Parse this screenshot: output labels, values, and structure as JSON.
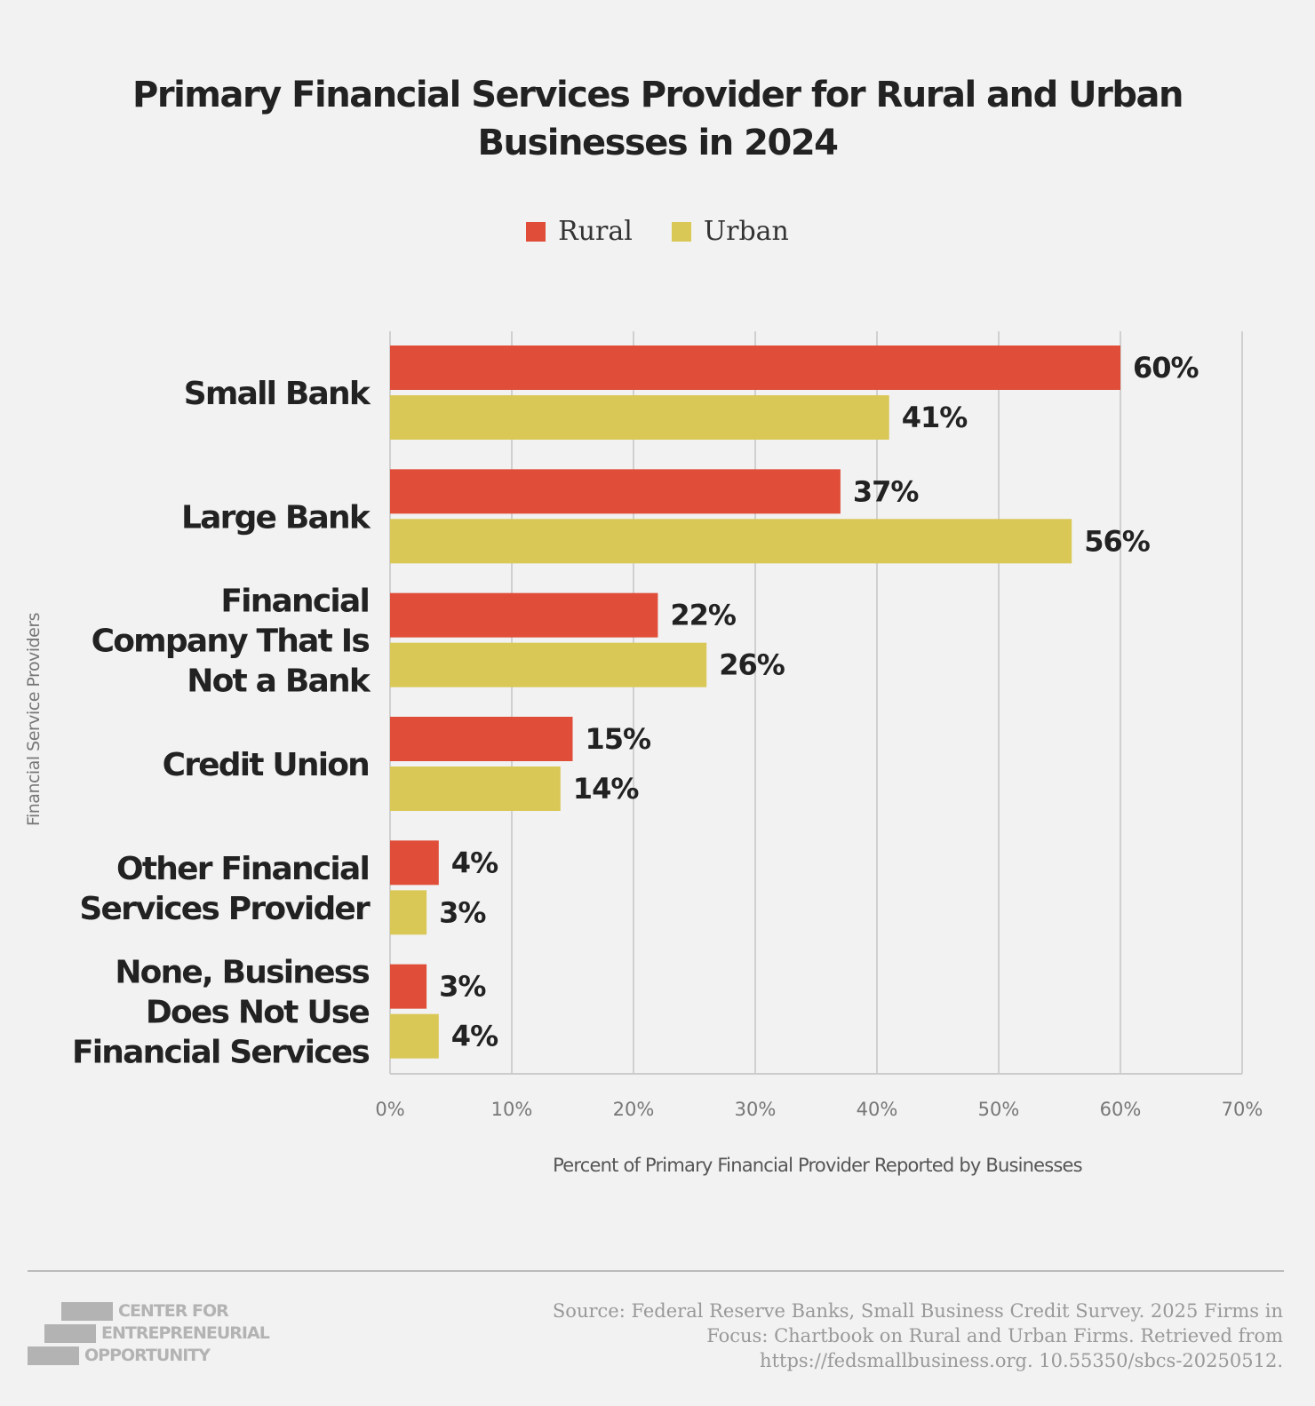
{
  "title_lines": [
    "Primary Financial Services Provider for Rural and Urban",
    "Businesses in 2024"
  ],
  "legend": [
    {
      "label": "Rural",
      "color": "#e04e39"
    },
    {
      "label": "Urban",
      "color": "#d9c756"
    }
  ],
  "y_axis_label": "Financial Service Providers",
  "x_axis_label": "Percent of Primary Financial Provider Reported by Businesses",
  "chart_data": {
    "type": "bar",
    "orientation": "horizontal",
    "title": "Primary Financial Services Provider for Rural and Urban Businesses in 2024",
    "xlabel": "Percent of Primary Financial Provider Reported by Businesses",
    "ylabel": "Financial Service Providers",
    "xlim": [
      0,
      70
    ],
    "x_ticks": [
      "0%",
      "10%",
      "20%",
      "30%",
      "40%",
      "50%",
      "60%",
      "70%"
    ],
    "grid": true,
    "legend_position": "top",
    "categories": [
      [
        "Small Bank"
      ],
      [
        "Large Bank"
      ],
      [
        "Financial",
        "Company That Is",
        "Not a Bank"
      ],
      [
        "Credit Union"
      ],
      [
        "Other Financial",
        "Services Provider"
      ],
      [
        "None, Business",
        "Does Not Use",
        "Financial Services"
      ]
    ],
    "series": [
      {
        "name": "Rural",
        "color": "#e04e39",
        "values": [
          60,
          37,
          22,
          15,
          4,
          3
        ]
      },
      {
        "name": "Urban",
        "color": "#d9c756",
        "values": [
          41,
          56,
          26,
          14,
          3,
          4
        ]
      }
    ]
  },
  "source_lines": [
    "Source: Federal Reserve Banks, Small Business Credit Survey. 2025 Firms in",
    "Focus: Chartbook on Rural and Urban Firms. Retrieved from",
    "https://fedsmallbusiness.org. 10.55350/sbcs-20250512."
  ],
  "logo": {
    "lines": [
      "CENTER FOR",
      "ENTREPRENEURIAL",
      "OPPORTUNITY"
    ],
    "color": "#b3b3b3"
  }
}
